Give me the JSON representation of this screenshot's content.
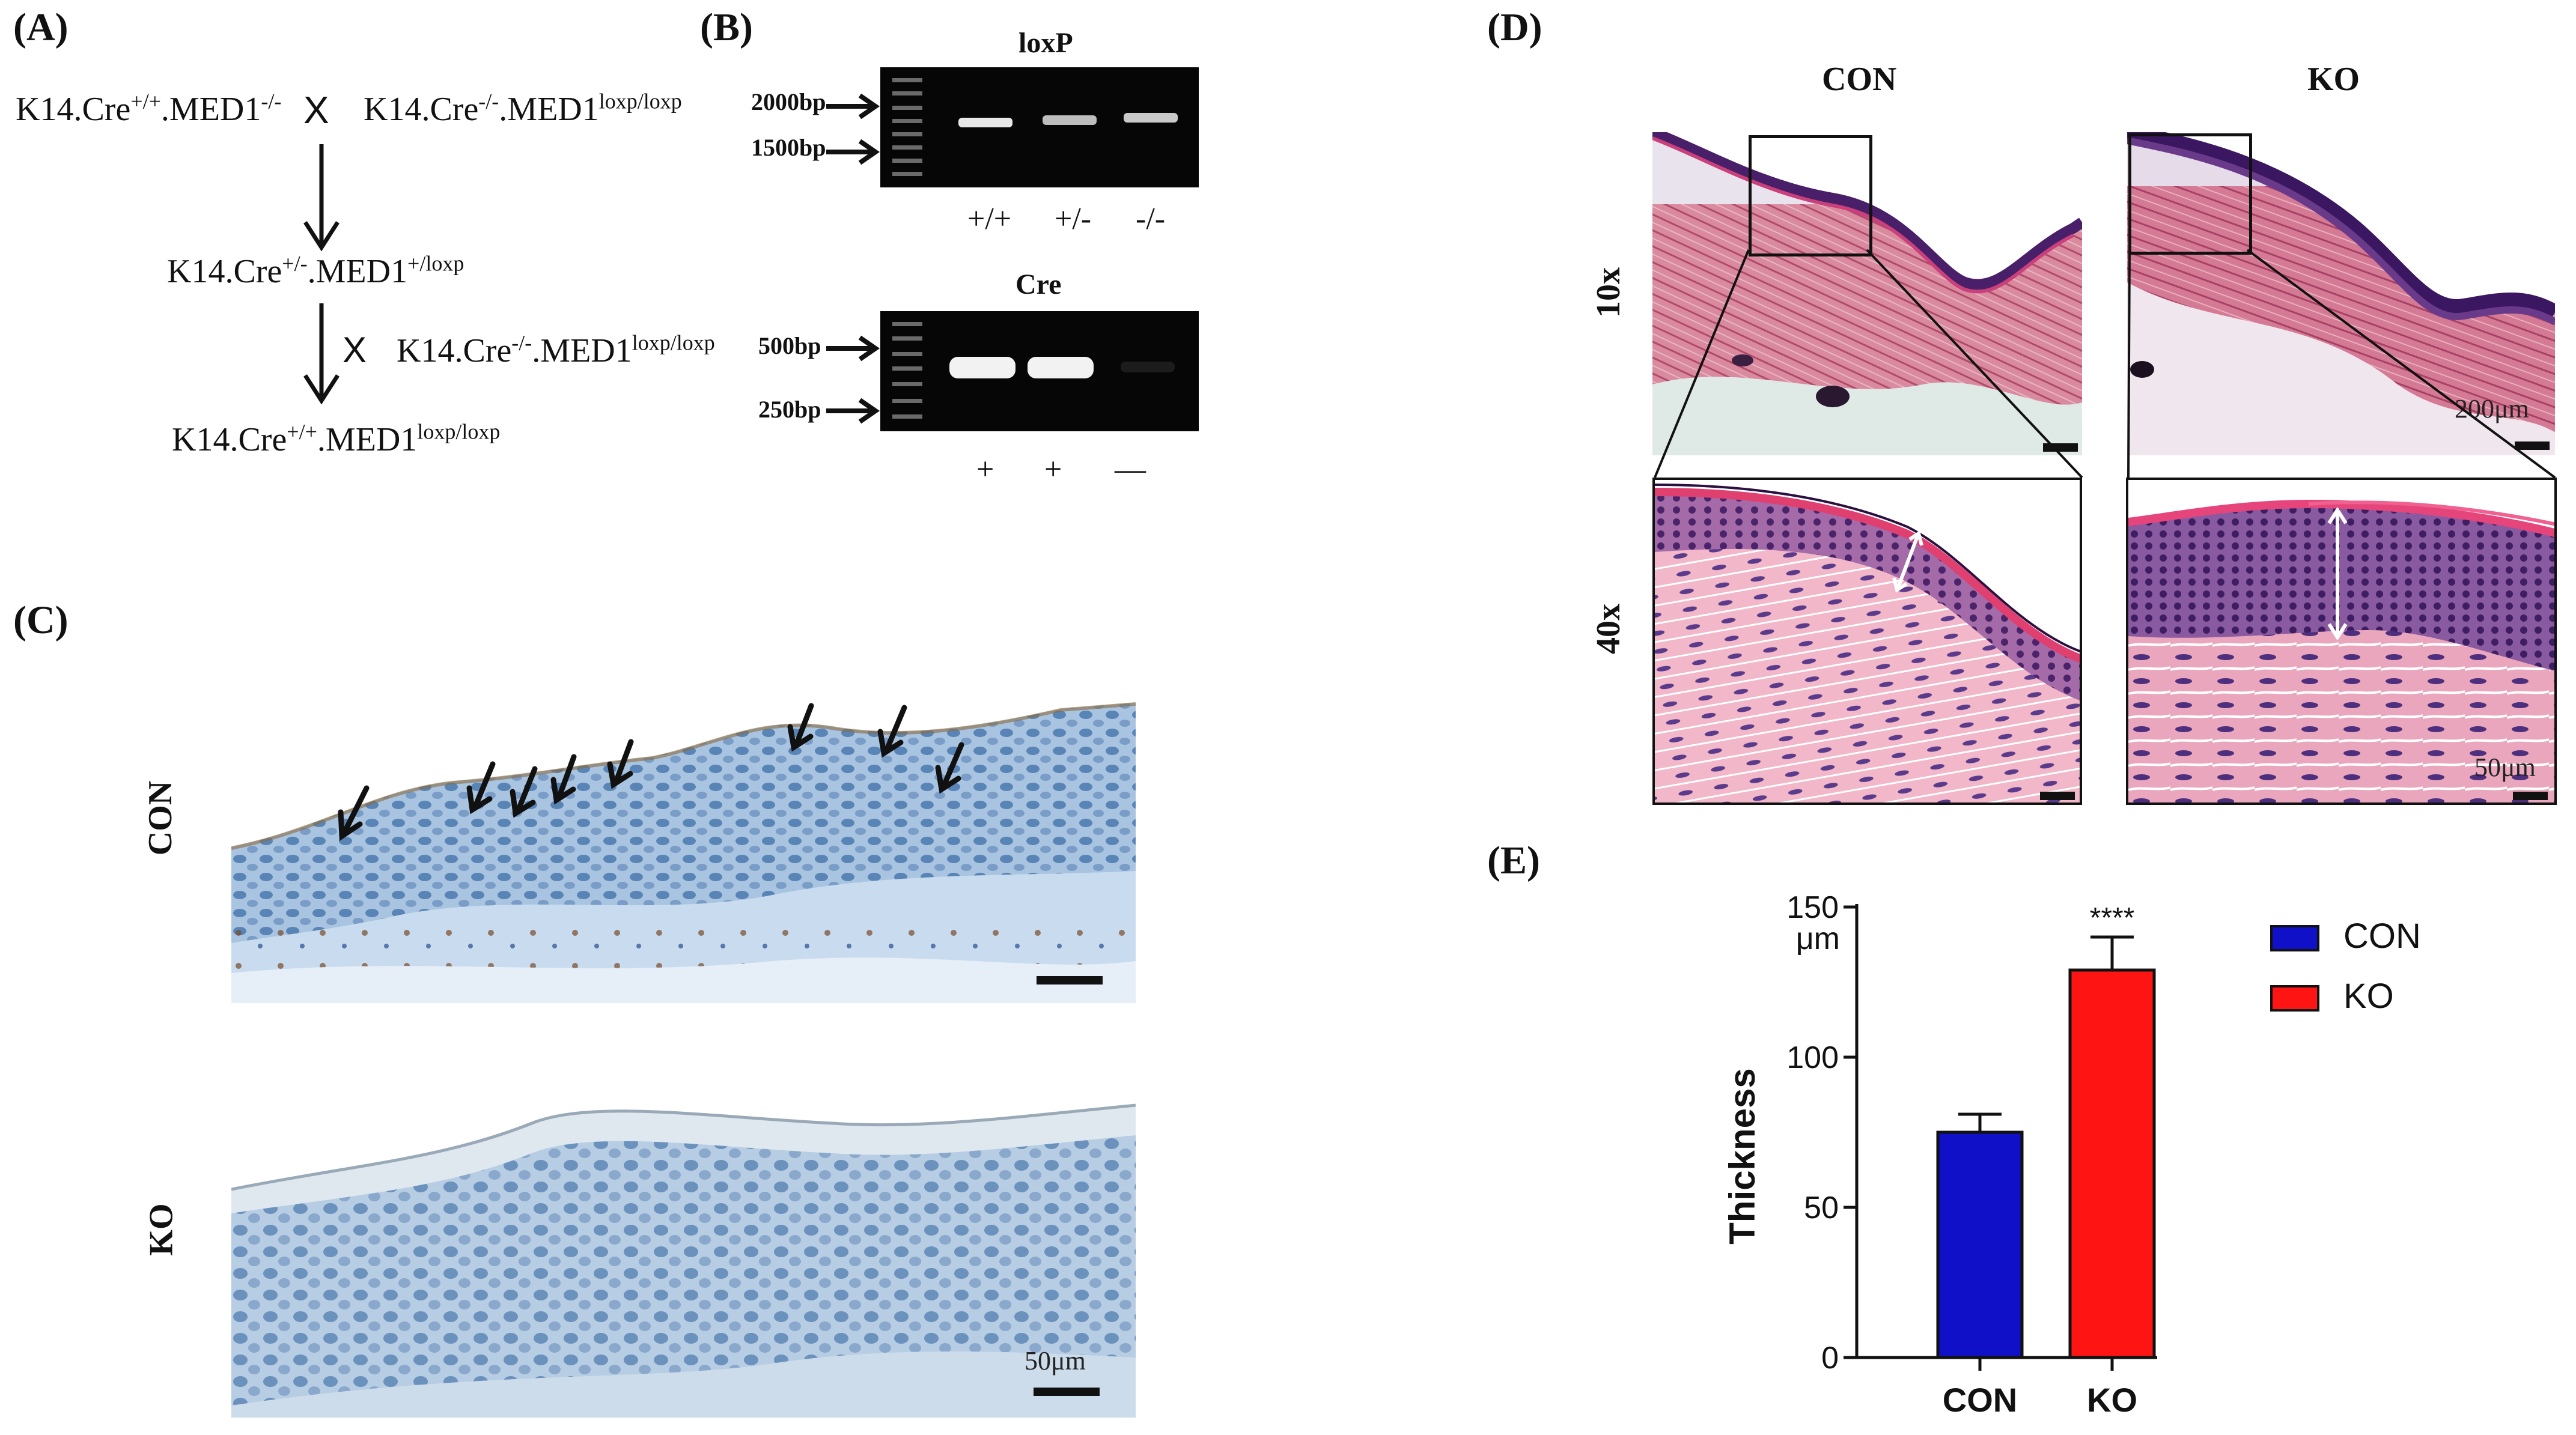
{
  "panels": {
    "a": {
      "label": "(A)",
      "cross1_left": "K14.Cre",
      "cross1_left_sup": "+/+",
      "cross1_left_gene": ".MED1",
      "cross1_left_gene_sup": "-/-",
      "cross_mark": "X",
      "cross1_right": "K14.Cre",
      "cross1_right_sup": "-/-",
      "cross1_right_gene": ".MED1",
      "cross1_right_gene_sup": "loxp/loxp",
      "f1": "K14.Cre",
      "f1_sup": "+/-",
      "f1_gene": ".MED1",
      "f1_gene_sup": "+/loxp",
      "cross2_mark": "X",
      "cross2_partner": "K14.Cre",
      "cross2_partner_sup": "-/-",
      "cross2_partner_gene": ".MED1",
      "cross2_partner_gene_sup": "loxp/loxp",
      "final": "K14.Cre",
      "final_sup": "+/+",
      "final_gene": ".MED1",
      "final_gene_sup": "loxp/loxp"
    },
    "b": {
      "label": "(B)",
      "loxp_title": "loxP",
      "loxp_markers": [
        "2000bp",
        "1500bp"
      ],
      "loxp_lanes": [
        "+/+",
        "+/-",
        "-/-"
      ],
      "cre_title": "Cre",
      "cre_markers": [
        "500bp",
        "250bp"
      ],
      "cre_lanes": [
        "+",
        "+",
        "—"
      ]
    },
    "c": {
      "label": "(C)",
      "row_labels": [
        "CON",
        "KO"
      ],
      "scale_text": "50μm"
    },
    "d": {
      "label": "(D)",
      "col_labels": [
        "CON",
        "KO"
      ],
      "row_labels": [
        "10x",
        "40x"
      ],
      "scale_text_10x": "200μm",
      "scale_text_40x": "50μm"
    },
    "e": {
      "label": "(E)"
    }
  },
  "chart_data": {
    "type": "bar",
    "categories": [
      "CON",
      "KO"
    ],
    "values": [
      75,
      129
    ],
    "errors": [
      6,
      11
    ],
    "significance": [
      "",
      "****"
    ],
    "xlabel": "",
    "ylabel": "Thickness",
    "yunit": "μm",
    "ylim": [
      0,
      150
    ],
    "yticks": [
      0,
      50,
      100,
      150
    ],
    "legend": [
      "CON",
      "KO"
    ],
    "legend_position": "right",
    "colors": [
      "#1010c8",
      "#ff1414"
    ]
  }
}
